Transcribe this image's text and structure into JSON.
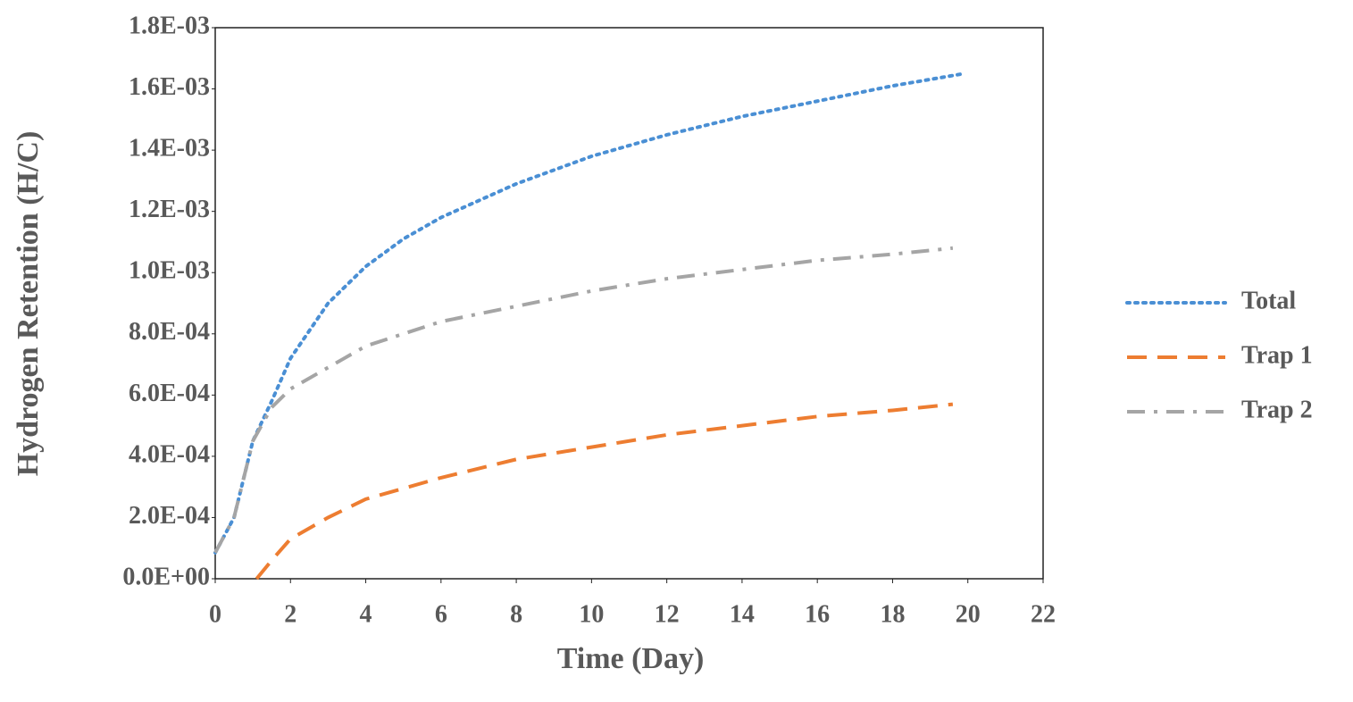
{
  "chart_data": {
    "type": "line",
    "x_label": "Time (Day)",
    "y_label": "Hydrogen Retention (H/C)",
    "xlim": [
      0,
      22
    ],
    "xticks": [
      0,
      2,
      4,
      6,
      8,
      10,
      12,
      14,
      16,
      18,
      20,
      22
    ],
    "ylim": [
      0,
      0.0018
    ],
    "yticks": [
      {
        "value": 0,
        "label": "0.0E+00"
      },
      {
        "value": 0.0002,
        "label": "2.0E-04"
      },
      {
        "value": 0.0004,
        "label": "4.0E-04"
      },
      {
        "value": 0.0006,
        "label": "6.0E-04"
      },
      {
        "value": 0.0008,
        "label": "8.0E-04"
      },
      {
        "value": 0.001,
        "label": "1.0E-03"
      },
      {
        "value": 0.0012,
        "label": "1.2E-03"
      },
      {
        "value": 0.0014,
        "label": "1.4E-03"
      },
      {
        "value": 0.0016,
        "label": "1.6E-03"
      },
      {
        "value": 0.0018,
        "label": "1.8E-03"
      }
    ],
    "grid": false,
    "legend": "right",
    "series": [
      {
        "name": "Total",
        "color": "#4a8fd4",
        "dash": "dotted",
        "x": [
          0,
          0.5,
          1,
          1.5,
          2,
          3,
          4,
          5,
          6,
          8,
          10,
          12,
          14,
          16,
          18,
          19.9
        ],
        "values": [
          8.5e-05,
          0.0002,
          0.00045,
          0.00058,
          0.00072,
          0.0009,
          0.00102,
          0.00111,
          0.00118,
          0.00129,
          0.00138,
          0.00145,
          0.00151,
          0.00156,
          0.00161,
          0.00165
        ]
      },
      {
        "name": "Trap 1",
        "color": "#ed7d31",
        "dash": "dashed",
        "x": [
          1.1,
          1.5,
          2,
          3,
          4,
          6,
          8,
          10,
          12,
          14,
          16,
          18,
          19.6
        ],
        "values": [
          0,
          6e-05,
          0.00013,
          0.0002,
          0.00026,
          0.00033,
          0.00039,
          0.00043,
          0.00047,
          0.0005,
          0.00053,
          0.00055,
          0.00057
        ]
      },
      {
        "name": "Trap 2",
        "color": "#a5a5a5",
        "dash": "dashdot",
        "x": [
          0,
          0.5,
          1,
          1.5,
          2,
          3,
          4,
          6,
          8,
          10,
          12,
          14,
          16,
          18,
          19.6
        ],
        "values": [
          8.5e-05,
          0.0002,
          0.00045,
          0.00056,
          0.00062,
          0.00069,
          0.00076,
          0.00084,
          0.00089,
          0.00094,
          0.00098,
          0.00101,
          0.00104,
          0.00106,
          0.00108
        ]
      }
    ]
  }
}
